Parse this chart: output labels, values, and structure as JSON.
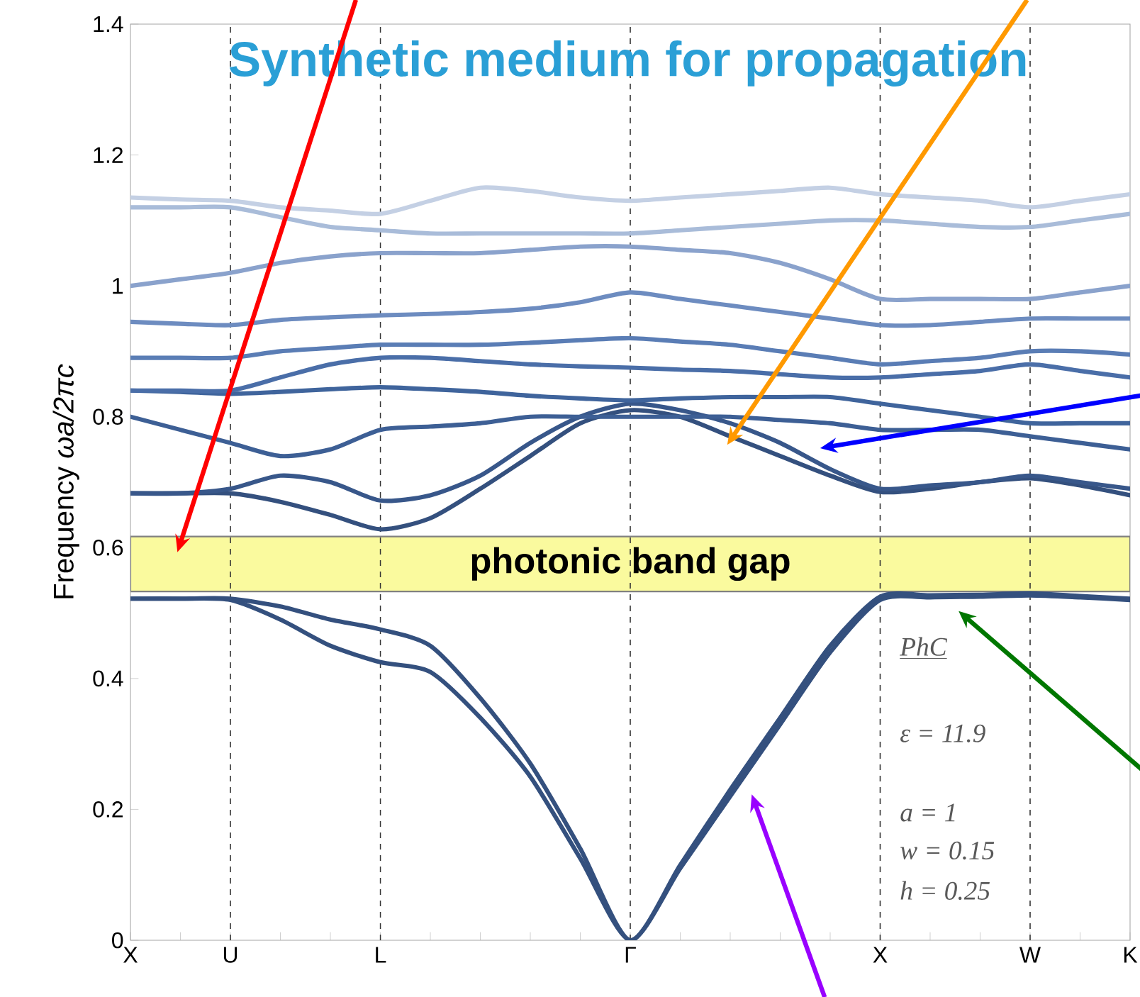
{
  "chart_data": {
    "type": "line",
    "title": "Synthetic medium for propagation",
    "ylabel": "Frequency *ωa/2πc*",
    "categories": [
      "X",
      null,
      "U",
      null,
      null,
      "L",
      null,
      null,
      null,
      null,
      "Γ",
      null,
      null,
      null,
      null,
      "X",
      null,
      null,
      "W",
      null,
      "K"
    ],
    "ylim": [
      0,
      1.4
    ],
    "yticks": [
      0,
      0.2,
      0.4,
      0.6,
      0.8,
      1,
      1.2,
      1.4
    ],
    "grid": "x",
    "series": [
      {
        "color": "#34507e",
        "values": [
          0.522,
          0.522,
          0.52,
          0.49,
          0.45,
          0.425,
          0.41,
          0.34,
          0.25,
          0.125,
          0,
          0.11,
          0.22,
          0.33,
          0.44,
          0.52,
          0.524,
          0.525,
          0.527,
          0.524,
          0.52
        ]
      },
      {
        "color": "#34507e",
        "values": [
          0.522,
          0.522,
          0.522,
          0.51,
          0.49,
          0.475,
          0.45,
          0.37,
          0.27,
          0.14,
          0,
          0.115,
          0.23,
          0.34,
          0.45,
          0.525,
          0.527,
          0.528,
          0.53,
          0.526,
          0.522
        ]
      },
      {
        "color": "#34507e",
        "values": [
          0.683,
          0.683,
          0.683,
          0.67,
          0.65,
          0.628,
          0.645,
          0.69,
          0.74,
          0.79,
          0.81,
          0.8,
          0.77,
          0.74,
          0.71,
          0.685,
          0.69,
          0.7,
          0.706,
          0.695,
          0.68
        ]
      },
      {
        "color": "#38578a",
        "values": [
          0.683,
          0.683,
          0.69,
          0.71,
          0.7,
          0.672,
          0.68,
          0.71,
          0.76,
          0.8,
          0.82,
          0.81,
          0.79,
          0.76,
          0.72,
          0.69,
          0.695,
          0.7,
          0.71,
          0.7,
          0.69
        ]
      },
      {
        "color": "#3d5f95",
        "values": [
          0.8,
          0.78,
          0.76,
          0.74,
          0.75,
          0.78,
          0.785,
          0.79,
          0.8,
          0.8,
          0.8,
          0.8,
          0.8,
          0.795,
          0.79,
          0.78,
          0.78,
          0.78,
          0.77,
          0.76,
          0.75
        ]
      },
      {
        "color": "#3f649c",
        "values": [
          0.84,
          0.838,
          0.835,
          0.838,
          0.842,
          0.845,
          0.842,
          0.838,
          0.832,
          0.828,
          0.825,
          0.828,
          0.83,
          0.83,
          0.83,
          0.82,
          0.81,
          0.8,
          0.79,
          0.79,
          0.79
        ]
      },
      {
        "color": "#4a6ea8",
        "values": [
          0.84,
          0.84,
          0.84,
          0.86,
          0.88,
          0.89,
          0.89,
          0.885,
          0.88,
          0.877,
          0.875,
          0.872,
          0.87,
          0.865,
          0.86,
          0.86,
          0.865,
          0.87,
          0.88,
          0.87,
          0.86
        ]
      },
      {
        "color": "#5a7db5",
        "values": [
          0.89,
          0.89,
          0.89,
          0.9,
          0.905,
          0.91,
          0.91,
          0.91,
          0.913,
          0.917,
          0.92,
          0.915,
          0.91,
          0.9,
          0.89,
          0.88,
          0.885,
          0.89,
          0.9,
          0.9,
          0.895
        ]
      },
      {
        "color": "#6d8cc0",
        "values": [
          0.945,
          0.942,
          0.94,
          0.948,
          0.952,
          0.955,
          0.957,
          0.96,
          0.965,
          0.975,
          0.99,
          0.98,
          0.97,
          0.96,
          0.95,
          0.94,
          0.94,
          0.945,
          0.95,
          0.95,
          0.95
        ]
      },
      {
        "color": "#8aa2cc",
        "values": [
          1.0,
          1.01,
          1.02,
          1.035,
          1.045,
          1.05,
          1.05,
          1.05,
          1.055,
          1.06,
          1.06,
          1.055,
          1.05,
          1.035,
          1.01,
          0.98,
          0.98,
          0.98,
          0.98,
          0.99,
          1.0
        ]
      },
      {
        "color": "#a9bcd9",
        "values": [
          1.12,
          1.12,
          1.12,
          1.105,
          1.09,
          1.085,
          1.08,
          1.08,
          1.08,
          1.08,
          1.08,
          1.085,
          1.09,
          1.095,
          1.1,
          1.1,
          1.095,
          1.09,
          1.09,
          1.1,
          1.11
        ]
      },
      {
        "color": "#c4d0e4",
        "values": [
          1.135,
          1.132,
          1.13,
          1.12,
          1.115,
          1.11,
          1.13,
          1.15,
          1.145,
          1.135,
          1.13,
          1.135,
          1.14,
          1.145,
          1.15,
          1.14,
          1.135,
          1.13,
          1.12,
          1.13,
          1.14
        ]
      }
    ],
    "bands": [
      {
        "axis": "y",
        "from": 0.533,
        "to": 0.617,
        "label": "photonic band gap",
        "color": "#fafa9e"
      }
    ],
    "annotations": [
      "PhC",
      "ε = 11.9",
      "a = 1",
      "w = 0.15",
      "h = 0.25"
    ]
  }
}
